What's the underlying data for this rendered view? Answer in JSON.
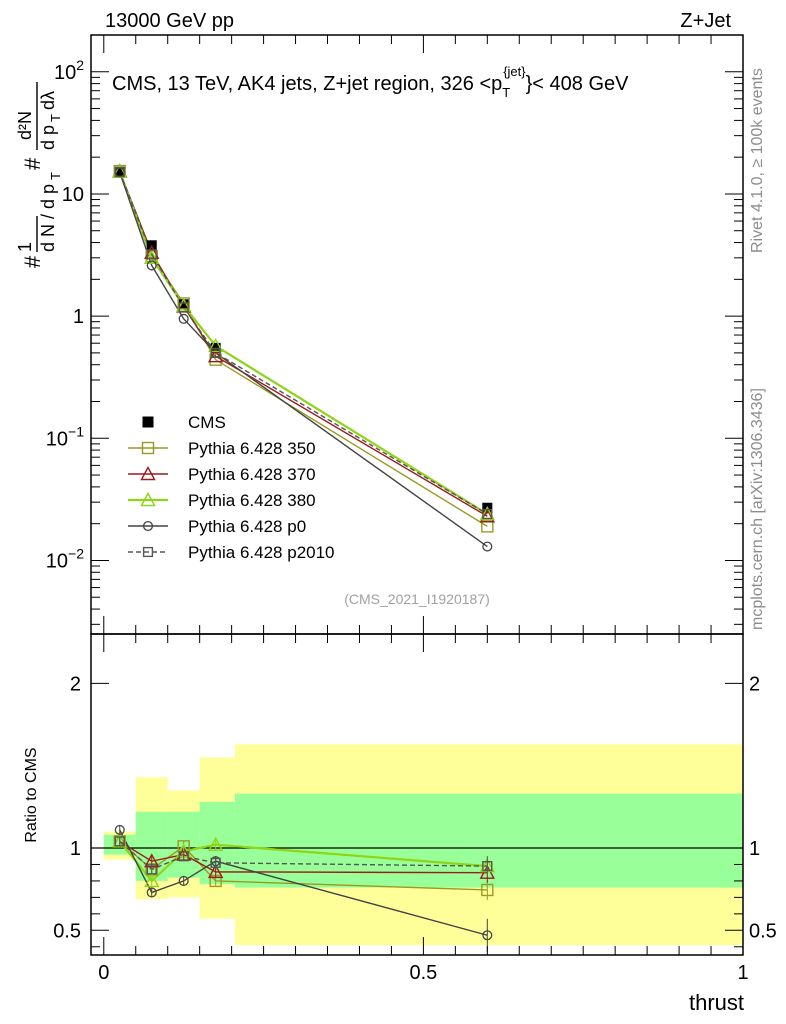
{
  "header": {
    "left_label": "13000 GeV pp",
    "right_label": "Z+Jet"
  },
  "side_labels": {
    "rivet": "Rivet 4.1.0, ≥ 100k events",
    "site": "mcplots.cern.ch [arXiv:1306.3436]"
  },
  "colors": {
    "cms": "#000000",
    "py350": "#9a9a23",
    "py370": "#9b1c1c",
    "py380": "#8ed417",
    "p0": "#444444",
    "p2010": "#555555",
    "band_inner": "#99ff99",
    "band_outer": "#ffff99"
  },
  "chart_data": [
    {
      "type": "line",
      "title": "CMS, 13 TeV, AK4 jets, Z+jet region, 326 <p_T^{jet}< 408 GeV",
      "title_text": {
        "main": "CMS, 13 TeV, AK4 jets, Z+jet region, 326 <p",
        "sup": "{jet}",
        "sub": "T",
        "tail": "}< 408 GeV"
      },
      "ylabel": "# 1/(d N / d p_T #) d²N/(d p_T d λ)",
      "yscale": "log",
      "ylim": [
        0.0025,
        200
      ],
      "xlim": [
        -0.02,
        1.0
      ],
      "y_ticks": [
        {
          "value": 0.01,
          "base": "10",
          "exp": "−2"
        },
        {
          "value": 0.1,
          "base": "10",
          "exp": "−1"
        },
        {
          "value": 1,
          "label": "1"
        },
        {
          "value": 10,
          "label": "10"
        },
        {
          "value": 100,
          "base": "10",
          "exp": "2"
        }
      ],
      "watermark": "(CMS_2021_I1920187)",
      "x": [
        0.025,
        0.075,
        0.125,
        0.175,
        0.6
      ],
      "series": [
        {
          "name": "CMS",
          "key": "cms",
          "values": [
            15.2,
            3.8,
            1.25,
            0.55,
            0.027
          ]
        },
        {
          "name": "Pythia 6.428 350",
          "key": "py350",
          "values": [
            15.4,
            3.1,
            1.27,
            0.44,
            0.019
          ]
        },
        {
          "name": "Pythia 6.428 370",
          "key": "py370",
          "values": [
            15.3,
            3.3,
            1.2,
            0.47,
            0.023
          ]
        },
        {
          "name": "Pythia 6.428 380",
          "key": "py380",
          "values": [
            15.2,
            3.0,
            1.22,
            0.57,
            0.024
          ]
        },
        {
          "name": "Pythia 6.428 p0",
          "key": "p0",
          "values": [
            15.0,
            2.6,
            0.95,
            0.5,
            0.013
          ]
        },
        {
          "name": "Pythia 6.428 p2010",
          "key": "p2010",
          "values": [
            15.1,
            3.2,
            1.18,
            0.5,
            0.024
          ]
        }
      ]
    },
    {
      "type": "line",
      "title": "",
      "ylabel": "Ratio to CMS",
      "xlabel": "thrust",
      "ylim": [
        0.35,
        2.3
      ],
      "xlim": [
        -0.02,
        1.0
      ],
      "y_ticks": [
        "0.5",
        "1",
        "2"
      ],
      "x_ticks": [
        "0",
        "0.5",
        "1"
      ],
      "x": [
        0.025,
        0.075,
        0.125,
        0.175,
        0.6
      ],
      "bands": [
        {
          "x0": 0.0,
          "x1": 0.05,
          "inner": [
            0.96,
            1.08
          ],
          "outer": [
            0.93,
            1.1
          ]
        },
        {
          "x0": 0.05,
          "x1": 0.1,
          "inner": [
            0.8,
            1.22
          ],
          "outer": [
            0.69,
            1.43
          ]
        },
        {
          "x0": 0.1,
          "x1": 0.15,
          "inner": [
            0.82,
            1.22
          ],
          "outer": [
            0.7,
            1.35
          ]
        },
        {
          "x0": 0.15,
          "x1": 0.205,
          "inner": [
            0.78,
            1.28
          ],
          "outer": [
            0.57,
            1.55
          ]
        },
        {
          "x0": 0.205,
          "x1": 1.0,
          "inner": [
            0.76,
            1.33
          ],
          "outer": [
            0.41,
            1.63
          ]
        }
      ],
      "series": [
        {
          "name": "Pythia 6.428 350",
          "key": "py350",
          "values": [
            1.04,
            0.87,
            1.01,
            0.8,
            0.745
          ]
        },
        {
          "name": "Pythia 6.428 370",
          "key": "py370",
          "values": [
            1.04,
            0.92,
            0.96,
            0.855,
            0.85
          ]
        },
        {
          "name": "Pythia 6.428 380",
          "key": "py380",
          "values": [
            1.04,
            0.8,
            0.98,
            1.02,
            0.89
          ]
        },
        {
          "name": "Pythia 6.428 p0",
          "key": "p0",
          "values": [
            1.11,
            0.73,
            0.8,
            0.92,
            0.47
          ]
        },
        {
          "name": "Pythia 6.428 p2010",
          "key": "p2010",
          "values": [
            1.04,
            0.87,
            0.95,
            0.91,
            0.89
          ]
        }
      ]
    }
  ]
}
